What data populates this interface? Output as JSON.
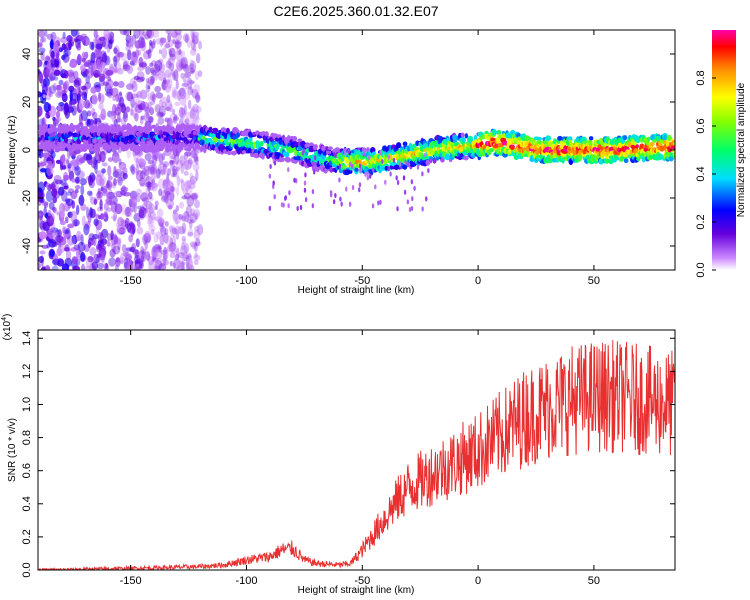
{
  "title": "C2E6.2025.360.01.32.E07",
  "chart_data": [
    {
      "type": "heatmap",
      "xlabel": "Height of straight line (km)",
      "ylabel": "Frequency (Hz)",
      "xlim": [
        -190,
        85
      ],
      "ylim": [
        -50,
        50
      ],
      "xticks": [
        "-150",
        "-100",
        "-50",
        "0",
        "50"
      ],
      "xtick_values": [
        -150,
        -100,
        -50,
        0,
        50
      ],
      "yticks": [
        "-40",
        "-20",
        "0",
        "20",
        "40"
      ],
      "ytick_values": [
        -40,
        -20,
        0,
        20,
        40
      ],
      "ridge": {
        "x": [
          -190,
          -160,
          -150,
          -140,
          -120,
          -100,
          -80,
          -70,
          -60,
          -50,
          -40,
          -30,
          -20,
          -10,
          0,
          5,
          10,
          20,
          30,
          40,
          50,
          60,
          70,
          85
        ],
        "y": [
          5,
          5,
          5,
          5,
          5,
          3,
          0,
          -3,
          -5,
          -5,
          -4,
          -2,
          0,
          1,
          2,
          3,
          3,
          1,
          0,
          0,
          0,
          0,
          1,
          1
        ]
      },
      "colorbar": {
        "label": "Normalized spectral amplitude",
        "range": [
          0,
          1
        ],
        "ticks": [
          "0.0",
          "0.2",
          "0.4",
          "0.6",
          "0.8"
        ],
        "tick_values": [
          0,
          0.2,
          0.4,
          0.6,
          0.8
        ]
      }
    },
    {
      "type": "line",
      "xlabel": "Height of straight line (km)",
      "ylabel": "SNR (10 * v/v)",
      "y_multiplier": "(x10",
      "y_multiplier_exp": "4",
      "y_multiplier_close": ")",
      "xlim": [
        -190,
        85
      ],
      "ylim": [
        0,
        1.45
      ],
      "xticks": [
        "-150",
        "-100",
        "-50",
        "0",
        "50"
      ],
      "xtick_values": [
        -150,
        -100,
        -50,
        0,
        50
      ],
      "yticks": [
        "0.0",
        "0.2",
        "0.4",
        "0.6",
        "0.8",
        "1.0",
        "1.2",
        "1.4"
      ],
      "ytick_values": [
        0,
        0.2,
        0.4,
        0.6,
        0.8,
        1.0,
        1.2,
        1.4
      ],
      "series": [
        {
          "color": "#e83030",
          "x": [
            -190,
            -150,
            -120,
            -110,
            -100,
            -90,
            -85,
            -80,
            -75,
            -70,
            -60,
            -55,
            -50,
            -45,
            -40,
            -35,
            -30,
            -20,
            -10,
            0,
            10,
            20,
            30,
            40,
            50,
            60,
            70,
            85
          ],
          "y": [
            0.0,
            0.01,
            0.02,
            0.03,
            0.06,
            0.08,
            0.12,
            0.13,
            0.06,
            0.04,
            0.03,
            0.04,
            0.12,
            0.22,
            0.32,
            0.42,
            0.5,
            0.58,
            0.65,
            0.72,
            0.82,
            0.92,
            0.98,
            1.03,
            1.05,
            1.05,
            1.03,
            1.0
          ]
        }
      ]
    }
  ]
}
